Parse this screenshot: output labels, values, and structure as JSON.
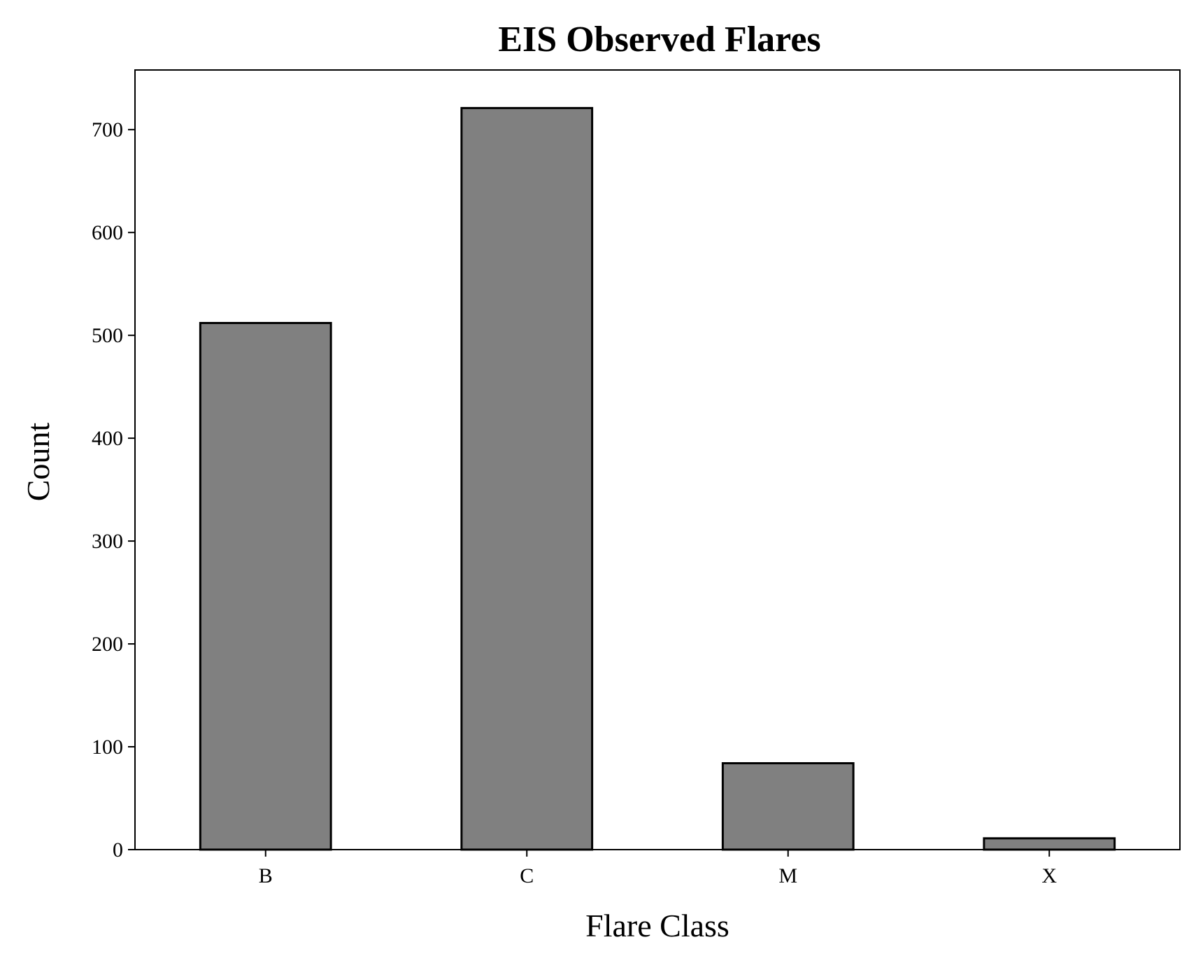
{
  "chart_data": {
    "type": "bar",
    "title": "EIS Observed Flares",
    "xlabel": "Flare Class",
    "ylabel": "Count",
    "categories": [
      "B",
      "C",
      "M",
      "X"
    ],
    "values": [
      512,
      721,
      84,
      11
    ],
    "ylim": [
      0,
      758
    ],
    "yticks": [
      0,
      100,
      200,
      300,
      400,
      500,
      600,
      700
    ],
    "grid": false,
    "legend": "none",
    "colors": {
      "bar_fill": "#808080",
      "bar_edge": "#000000"
    }
  }
}
